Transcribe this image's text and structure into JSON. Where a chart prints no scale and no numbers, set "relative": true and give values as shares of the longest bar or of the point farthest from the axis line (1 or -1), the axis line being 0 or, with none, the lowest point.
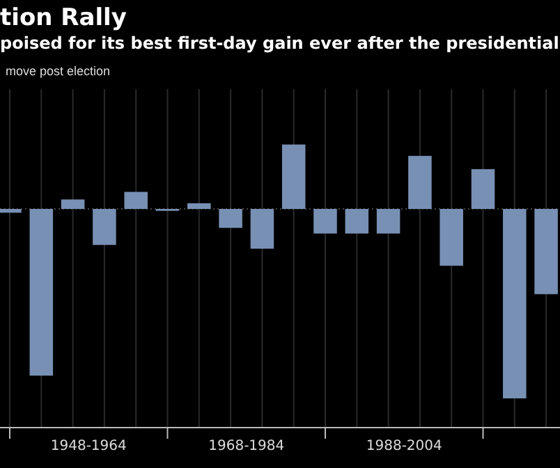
{
  "chart_data": {
    "type": "bar",
    "title": "tion Rally",
    "subtitle": "poised for its best first-day gain ever after the presidential",
    "annotations": [
      "move post election"
    ],
    "categories": [
      null,
      null,
      "1948-1964",
      null,
      null,
      null,
      null,
      "1968-1984",
      null,
      null,
      null,
      null,
      "1988-2004",
      null,
      null,
      null,
      null,
      null
    ],
    "values": [
      -0.02,
      -0.88,
      0.05,
      -0.19,
      0.09,
      -0.01,
      0.03,
      -0.1,
      -0.21,
      0.34,
      -0.13,
      -0.13,
      -0.13,
      0.28,
      -0.3,
      0.21,
      -1,
      -0.45
    ],
    "color": "#7890b4",
    "relative": true,
    "grid": "x",
    "ref_lines": [
      {
        "axis": "y",
        "value": 0,
        "color": "#444444",
        "line_style": "dotted"
      }
    ]
  }
}
